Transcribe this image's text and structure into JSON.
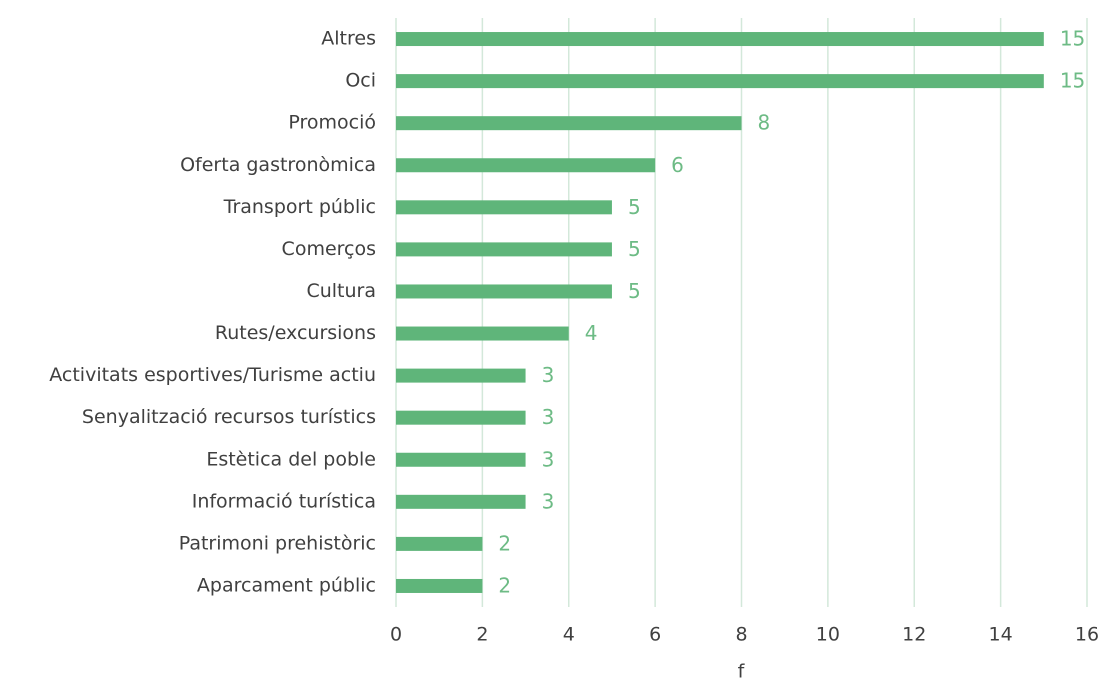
{
  "chart_data": {
    "type": "bar",
    "orientation": "horizontal",
    "categories": [
      "Altres",
      "Oci",
      "Promoció",
      "Oferta gastronòmica",
      "Transport públic",
      "Comerços",
      "Cultura",
      "Rutes/excursions",
      "Activitats esportives/Turisme actiu",
      "Senyalització recursos turístics",
      "Estètica del poble",
      "Informació turística",
      "Patrimoni prehistòric",
      "Aparcament públic"
    ],
    "values": [
      15,
      15,
      8,
      6,
      5,
      5,
      5,
      4,
      3,
      3,
      3,
      3,
      2,
      2
    ],
    "color": "#5fb57a",
    "xlabel": "f",
    "xlim": [
      0,
      16
    ],
    "xticks": [
      0,
      2,
      4,
      6,
      8,
      10,
      12,
      14,
      16
    ],
    "grid": true
  }
}
